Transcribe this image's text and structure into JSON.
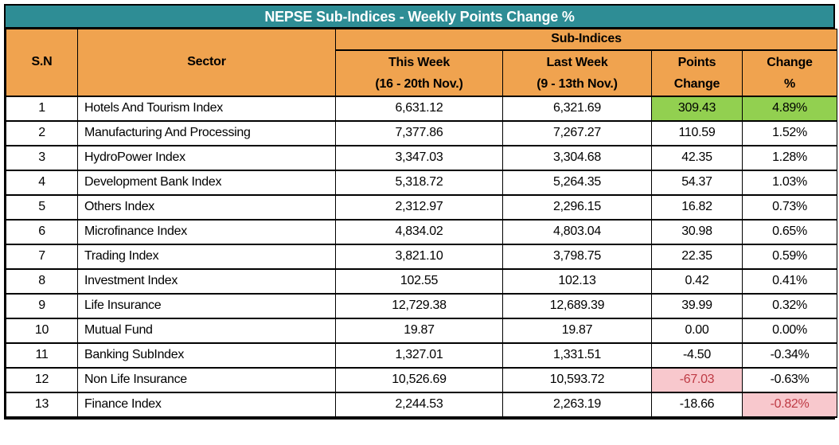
{
  "title": "NEPSE Sub-Indices - Weekly Points Change %",
  "colors": {
    "title_bg": "#2E8D95",
    "header_bg": "#F0A34F",
    "green_bg": "#92D050",
    "pink_bg": "#F8C8CD",
    "red_text": "#BE3A44"
  },
  "table": {
    "headers": {
      "sn": "S.N",
      "sector": "Sector",
      "group": "Sub-Indices",
      "this_week_line1": "This Week",
      "this_week_line2": "(16 - 20th Nov.)",
      "last_week_line1": "Last Week",
      "last_week_line2": "(9 - 13th Nov.)",
      "points_line1": "Points",
      "points_line2": "Change",
      "change_line1": "Change",
      "change_line2": "%"
    },
    "rows": [
      {
        "sn": "1",
        "sector": "Hotels And Tourism Index",
        "this_week": "6,631.12",
        "last_week": "6,321.69",
        "points": "309.43",
        "change": "4.89%",
        "points_hl": "green",
        "change_hl": "green"
      },
      {
        "sn": "2",
        "sector": "Manufacturing And Processing",
        "this_week": "7,377.86",
        "last_week": "7,267.27",
        "points": "110.59",
        "change": "1.52%",
        "points_hl": null,
        "change_hl": null
      },
      {
        "sn": "3",
        "sector": "HydroPower Index",
        "this_week": "3,347.03",
        "last_week": "3,304.68",
        "points": "42.35",
        "change": "1.28%",
        "points_hl": null,
        "change_hl": null
      },
      {
        "sn": "4",
        "sector": "Development Bank Index",
        "this_week": "5,318.72",
        "last_week": "5,264.35",
        "points": "54.37",
        "change": "1.03%",
        "points_hl": null,
        "change_hl": null
      },
      {
        "sn": "5",
        "sector": "Others Index",
        "this_week": "2,312.97",
        "last_week": "2,296.15",
        "points": "16.82",
        "change": "0.73%",
        "points_hl": null,
        "change_hl": null
      },
      {
        "sn": "6",
        "sector": "Microfinance Index",
        "this_week": "4,834.02",
        "last_week": "4,803.04",
        "points": "30.98",
        "change": "0.65%",
        "points_hl": null,
        "change_hl": null
      },
      {
        "sn": "7",
        "sector": "Trading Index",
        "this_week": "3,821.10",
        "last_week": "3,798.75",
        "points": "22.35",
        "change": "0.59%",
        "points_hl": null,
        "change_hl": null
      },
      {
        "sn": "8",
        "sector": "Investment Index",
        "this_week": "102.55",
        "last_week": "102.13",
        "points": "0.42",
        "change": "0.41%",
        "points_hl": null,
        "change_hl": null
      },
      {
        "sn": "9",
        "sector": "Life Insurance",
        "this_week": "12,729.38",
        "last_week": "12,689.39",
        "points": "39.99",
        "change": "0.32%",
        "points_hl": null,
        "change_hl": null
      },
      {
        "sn": "10",
        "sector": "Mutual Fund",
        "this_week": "19.87",
        "last_week": "19.87",
        "points": "0.00",
        "change": "0.00%",
        "points_hl": null,
        "change_hl": null
      },
      {
        "sn": "11",
        "sector": "Banking SubIndex",
        "this_week": "1,327.01",
        "last_week": "1,331.51",
        "points": "-4.50",
        "change": "-0.34%",
        "points_hl": null,
        "change_hl": null
      },
      {
        "sn": "12",
        "sector": "Non Life Insurance",
        "this_week": "10,526.69",
        "last_week": "10,593.72",
        "points": "-67.03",
        "change": "-0.63%",
        "points_hl": "pink",
        "change_hl": null
      },
      {
        "sn": "13",
        "sector": "Finance Index",
        "this_week": "2,244.53",
        "last_week": "2,263.19",
        "points": "-18.66",
        "change": "-0.82%",
        "points_hl": null,
        "change_hl": "pink"
      }
    ]
  },
  "chart_data": {
    "type": "table",
    "title": "NEPSE Sub-Indices - Weekly Points Change %",
    "columns": [
      "S.N",
      "Sector",
      "This Week (16 - 20th Nov.)",
      "Last Week (9 - 13th Nov.)",
      "Points Change",
      "Change %"
    ],
    "rows": [
      [
        1,
        "Hotels And Tourism Index",
        6631.12,
        6321.69,
        309.43,
        4.89
      ],
      [
        2,
        "Manufacturing And Processing",
        7377.86,
        7267.27,
        110.59,
        1.52
      ],
      [
        3,
        "HydroPower Index",
        3347.03,
        3304.68,
        42.35,
        1.28
      ],
      [
        4,
        "Development Bank Index",
        5318.72,
        5264.35,
        54.37,
        1.03
      ],
      [
        5,
        "Others Index",
        2312.97,
        2296.15,
        16.82,
        0.73
      ],
      [
        6,
        "Microfinance Index",
        4834.02,
        4803.04,
        30.98,
        0.65
      ],
      [
        7,
        "Trading Index",
        3821.1,
        3798.75,
        22.35,
        0.59
      ],
      [
        8,
        "Investment Index",
        102.55,
        102.13,
        0.42,
        0.41
      ],
      [
        9,
        "Life Insurance",
        12729.38,
        12689.39,
        39.99,
        0.32
      ],
      [
        10,
        "Mutual Fund",
        19.87,
        19.87,
        0.0,
        0.0
      ],
      [
        11,
        "Banking SubIndex",
        1327.01,
        1331.51,
        -4.5,
        -0.34
      ],
      [
        12,
        "Non Life Insurance",
        10526.69,
        10593.72,
        -67.03,
        -0.63
      ],
      [
        13,
        "Finance Index",
        2244.53,
        2263.19,
        -18.66,
        -0.82
      ]
    ],
    "highlights": {
      "green_cells": [
        "row1.points_change",
        "row1.change_pct"
      ],
      "pink_cells": [
        "row12.points_change",
        "row13.change_pct"
      ]
    }
  }
}
